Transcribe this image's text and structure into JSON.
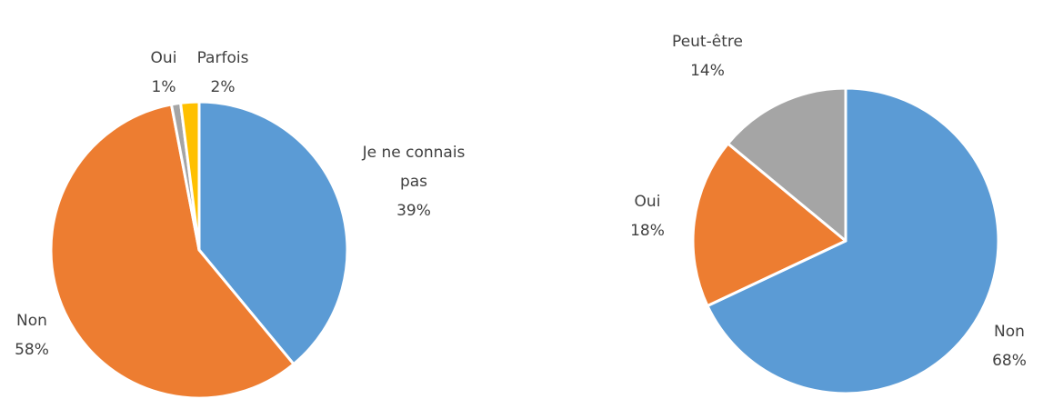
{
  "chart_data": [
    {
      "type": "pie",
      "categories": [
        "Je ne connais pas",
        "Non",
        "Oui",
        "Parfois"
      ],
      "values": [
        39,
        58,
        1,
        2
      ],
      "value_labels": [
        "39%",
        "58%",
        "1%",
        "2%"
      ],
      "colors": [
        "#5b9bd5",
        "#ed7d31",
        "#a5a5a5",
        "#ffc000"
      ]
    },
    {
      "type": "pie",
      "categories": [
        "Non",
        "Oui",
        "Peut-être"
      ],
      "values": [
        68,
        18,
        14
      ],
      "value_labels": [
        "68%",
        "18%",
        "14%"
      ],
      "colors": [
        "#5b9bd5",
        "#ed7d31",
        "#a5a5a5"
      ]
    }
  ]
}
